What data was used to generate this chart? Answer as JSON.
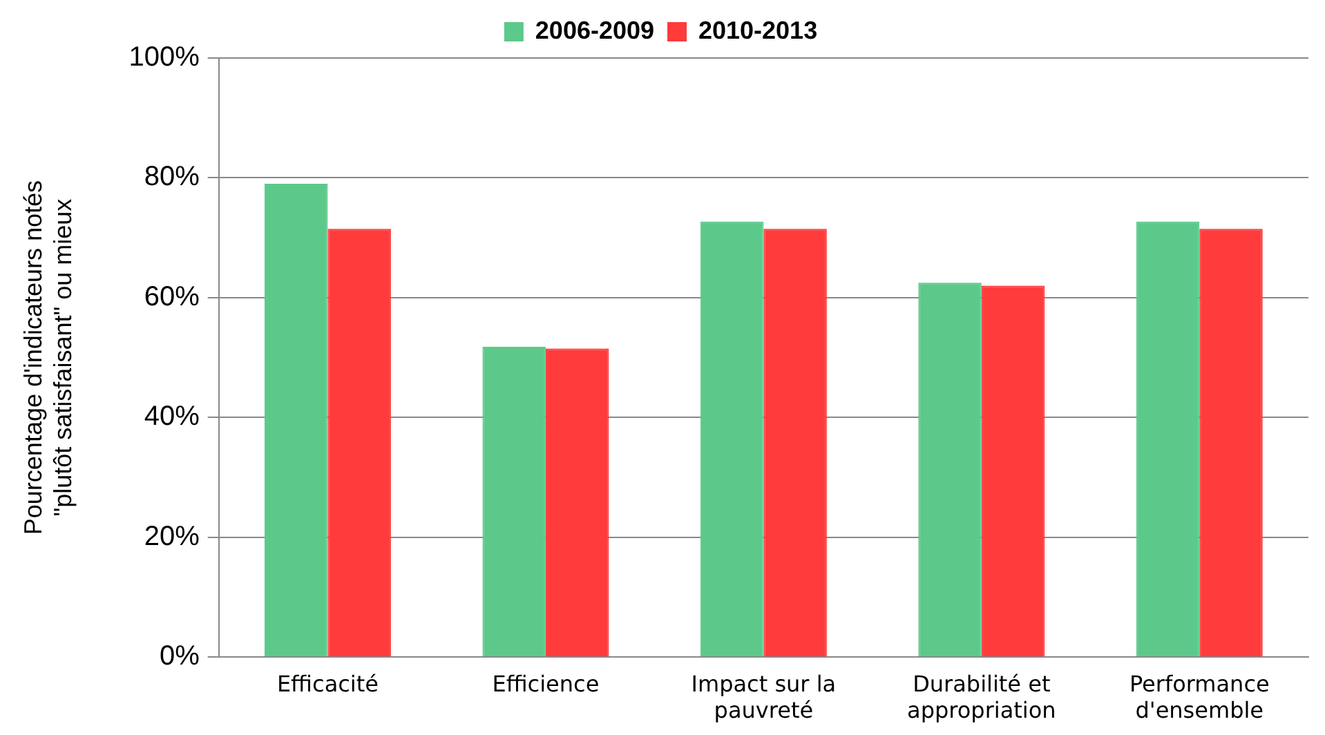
{
  "chart_data": {
    "type": "bar",
    "ylabel": "Pourcentage d'indicateurs notés \"plutôt satisfaisant\" ou mieux",
    "categories": [
      "Efficacité",
      "Efficience",
      "Impact sur la pauvreté",
      "Durabilité et appropriation",
      "Performance d'ensemble"
    ],
    "series": [
      {
        "name": "2006-2009",
        "color": "#5cc98a",
        "values": [
          79,
          51.8,
          72.7,
          62.5,
          72.7
        ]
      },
      {
        "name": "2010-2013",
        "color": "#ff3b3b",
        "values": [
          71.5,
          51.5,
          71.5,
          62,
          71.5
        ]
      }
    ],
    "ylim": [
      0,
      100
    ],
    "yticks": [
      {
        "value": 0,
        "label": "0%"
      },
      {
        "value": 20,
        "label": "20%"
      },
      {
        "value": 40,
        "label": "40%"
      },
      {
        "value": 60,
        "label": "60%"
      },
      {
        "value": 80,
        "label": "80%"
      },
      {
        "value": 100,
        "label": "100%"
      }
    ],
    "grid": "y",
    "legend": "top"
  }
}
